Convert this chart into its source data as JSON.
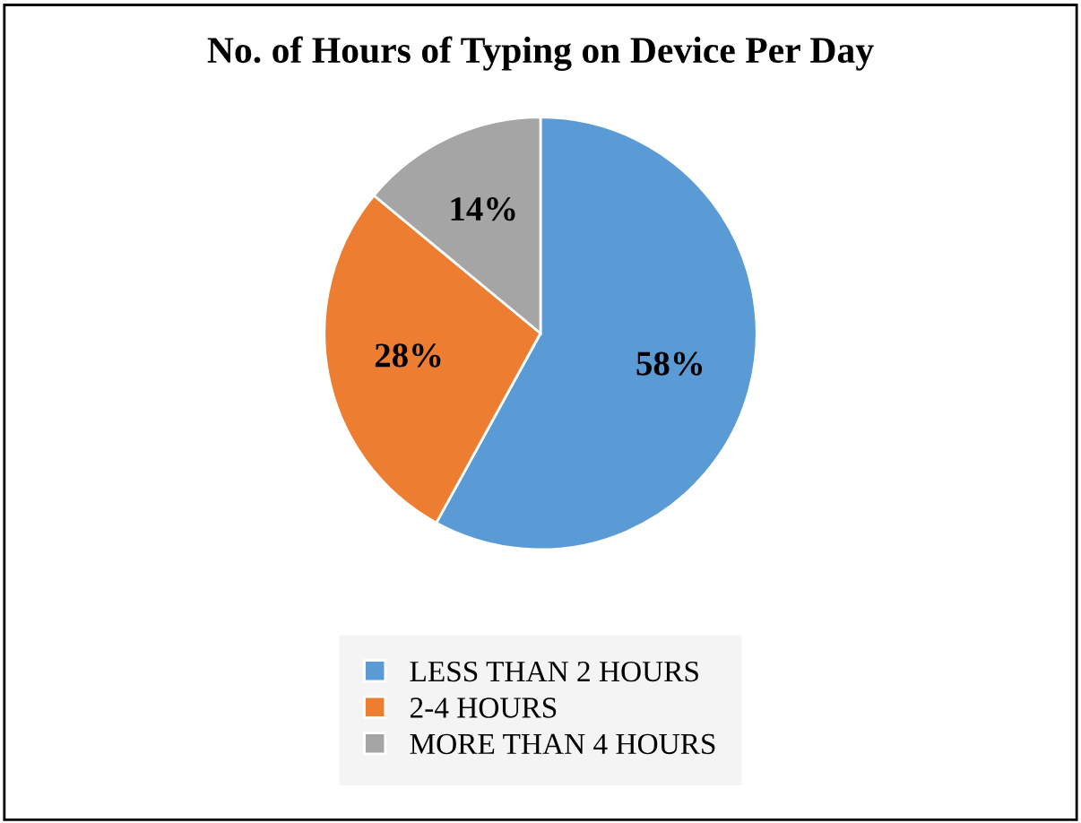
{
  "chart_data": {
    "type": "pie",
    "title": "No. of Hours of Typing on Device Per Day",
    "categories": [
      "LESS THAN 2 HOURS",
      "2-4 HOURS",
      "MORE THAN 4 HOURS"
    ],
    "values": [
      58,
      28,
      14
    ],
    "colors": [
      "#5b9bd5",
      "#ed7d31",
      "#a5a5a5"
    ],
    "value_labels": [
      "58%",
      "28%",
      "14%"
    ],
    "legend": "bottom"
  }
}
